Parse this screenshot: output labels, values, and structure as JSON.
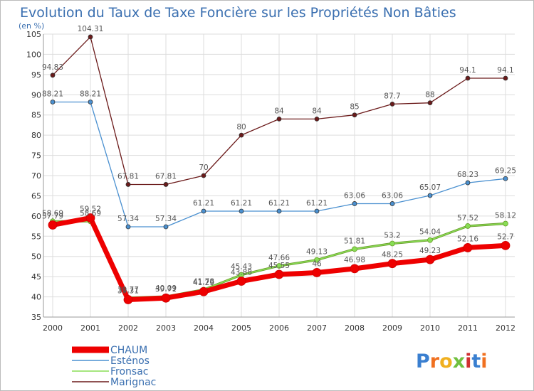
{
  "chart_data": {
    "type": "line",
    "title": "Evolution du Taux de Taxe Foncière sur les Propriétés Non Bâties",
    "subtitle": "(en %)",
    "categories": [
      "2000",
      "2001",
      "2002",
      "2003",
      "2004",
      "2005",
      "2006",
      "2007",
      "2008",
      "2009",
      "2010",
      "2011",
      "2012"
    ],
    "ylim": [
      35,
      105
    ],
    "yticks": [
      35,
      40,
      45,
      50,
      55,
      60,
      65,
      70,
      75,
      80,
      85,
      90,
      95,
      100,
      105
    ],
    "grid": true,
    "legend_position": "bottom-left",
    "series": [
      {
        "name": "Marignac",
        "color": "#6b1a1a",
        "values": [
          94.83,
          104.31,
          67.81,
          67.81,
          70,
          80,
          84,
          84,
          85,
          87.7,
          88,
          94.1,
          94.1
        ],
        "labels": [
          "94.83",
          "104.31",
          "67.81",
          "67.81",
          "70",
          "80",
          "84",
          "84",
          "85",
          "87.7",
          "88",
          "94.1",
          "94.1"
        ]
      },
      {
        "name": "Esténos",
        "color": "#4a90d0",
        "values": [
          88.21,
          88.21,
          57.34,
          57.34,
          61.21,
          61.21,
          61.21,
          61.21,
          63.06,
          63.06,
          65.07,
          68.23,
          69.25
        ],
        "labels": [
          "88.21",
          "88.21",
          "57.34",
          "57.34",
          "61.21",
          "61.21",
          "61.21",
          "61.21",
          "63.06",
          "63.06",
          "65.07",
          "68.23",
          "69.25"
        ]
      },
      {
        "name": "Fronsac",
        "color": "#88dd55",
        "values": [
          58.69,
          58.69,
          39.77,
          40.09,
          41.78,
          45.43,
          47.66,
          49.13,
          51.81,
          53.2,
          54.04,
          57.52,
          58.12
        ],
        "labels": [
          "58.69",
          "58.69",
          "39.77",
          "40.09",
          "41.78",
          "45.43",
          "47.66",
          "49.13",
          "51.81",
          "53.2",
          "54.04",
          "57.52",
          "58.12"
        ]
      },
      {
        "name": "CHAUM",
        "color": "#ee0000",
        "values": [
          57.79,
          59.52,
          39.31,
          39.71,
          41.29,
          43.88,
          45.55,
          46,
          46.98,
          48.25,
          49.23,
          52.16,
          52.7
        ],
        "labels": [
          "57.79",
          "59.52",
          "39.31",
          "39.71",
          "41.29",
          "43.88",
          "45.55",
          "46",
          "46.98",
          "48.25",
          "49.23",
          "52.16",
          "52.7"
        ]
      }
    ],
    "legend": [
      "CHAUM",
      "Esténos",
      "Fronsac",
      "Marignac"
    ]
  },
  "logo": {
    "text": "Proxiti",
    "letters": [
      {
        "ch": "P",
        "color": "#3a7fd0"
      },
      {
        "ch": "r",
        "color": "#f07020"
      },
      {
        "ch": "o",
        "color": "#f0b020"
      },
      {
        "ch": "x",
        "color": "#70c040"
      },
      {
        "ch": "i",
        "color": "#d03030"
      },
      {
        "ch": "t",
        "color": "#3a7fd0"
      },
      {
        "ch": "i",
        "color": "#f07020"
      }
    ]
  }
}
